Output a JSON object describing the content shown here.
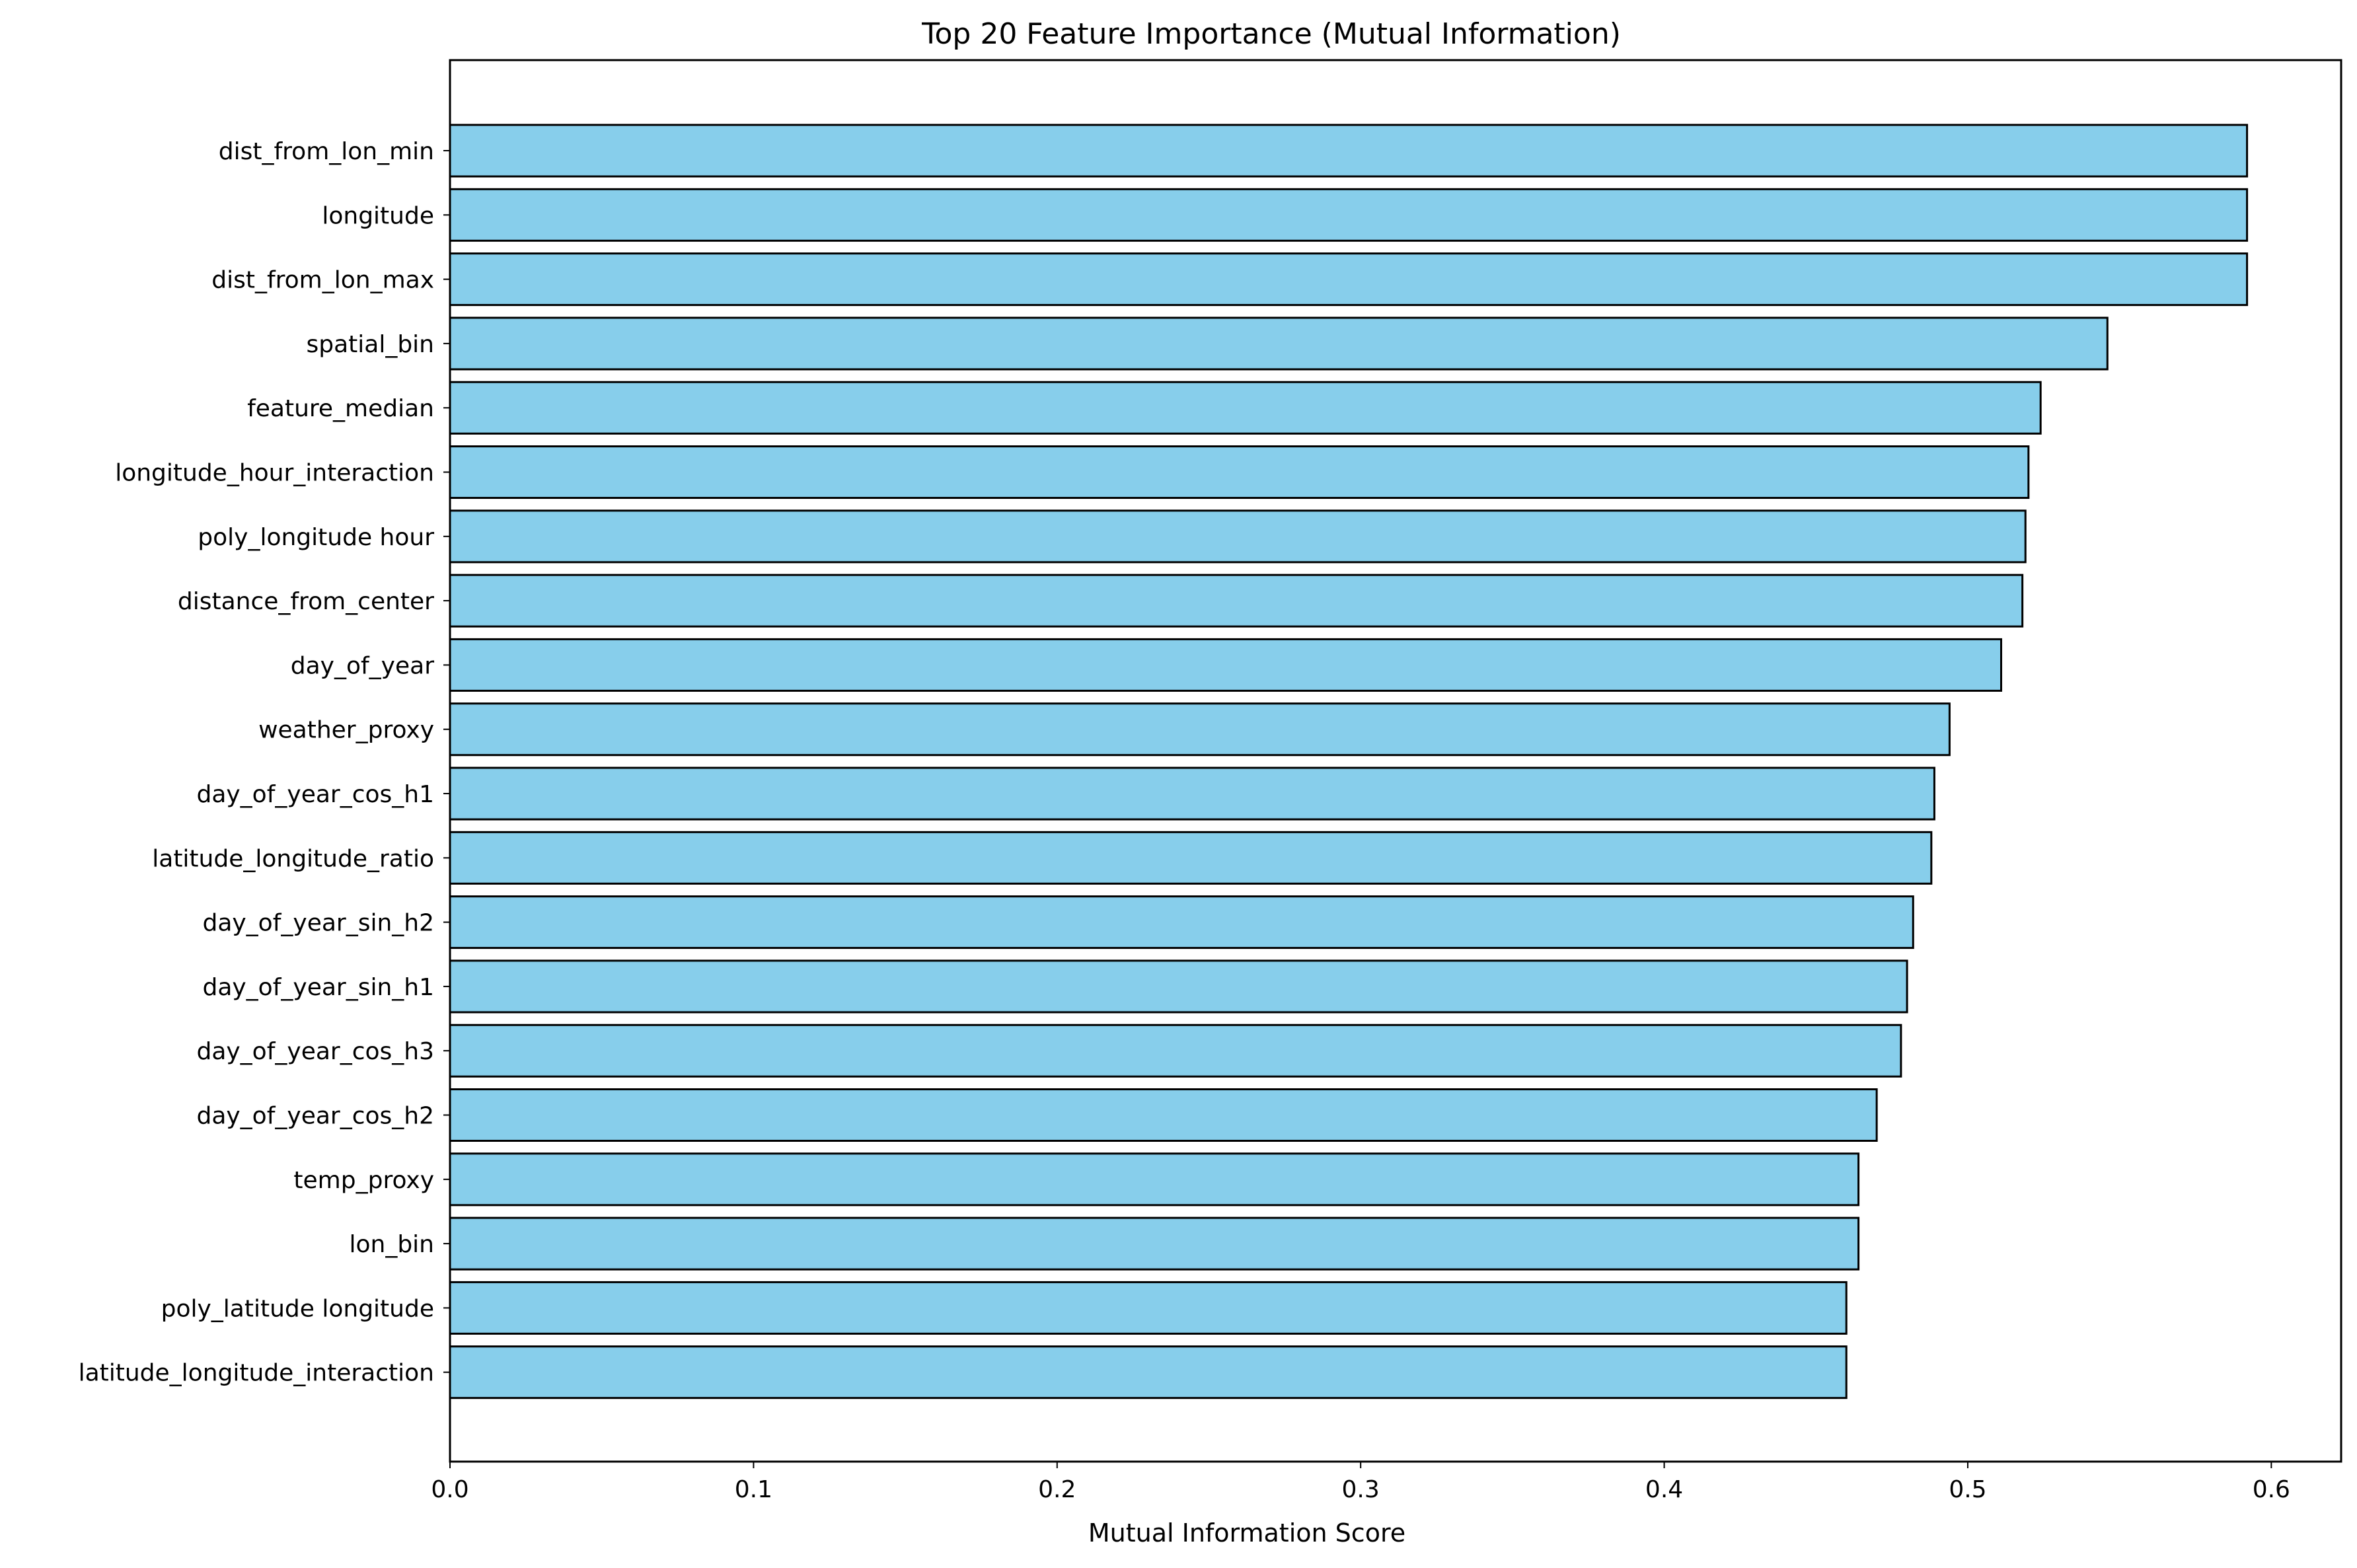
{
  "chart_data": {
    "type": "bar",
    "orientation": "horizontal",
    "title": "Top 20 Feature Importance (Mutual Information)",
    "xlabel": "Mutual Information Score",
    "ylabel": "",
    "xlim": [
      0,
      0.623
    ],
    "x_ticks": [
      "0.0",
      "0.1",
      "0.2",
      "0.3",
      "0.4",
      "0.5",
      "0.6"
    ],
    "grid": false,
    "bar_color": "#87CEEB",
    "edge_color": "#000000",
    "categories": [
      "dist_from_lon_min",
      "longitude",
      "dist_from_lon_max",
      "spatial_bin",
      "feature_median",
      "longitude_hour_interaction",
      "poly_longitude hour",
      "distance_from_center",
      "day_of_year",
      "weather_proxy",
      "day_of_year_cos_h1",
      "latitude_longitude_ratio",
      "day_of_year_sin_h2",
      "day_of_year_sin_h1",
      "day_of_year_cos_h3",
      "day_of_year_cos_h2",
      "temp_proxy",
      "lon_bin",
      "poly_latitude longitude",
      "latitude_longitude_interaction"
    ],
    "values": [
      0.592,
      0.592,
      0.592,
      0.546,
      0.524,
      0.52,
      0.519,
      0.518,
      0.511,
      0.494,
      0.489,
      0.488,
      0.482,
      0.48,
      0.478,
      0.47,
      0.464,
      0.464,
      0.46,
      0.46
    ]
  }
}
